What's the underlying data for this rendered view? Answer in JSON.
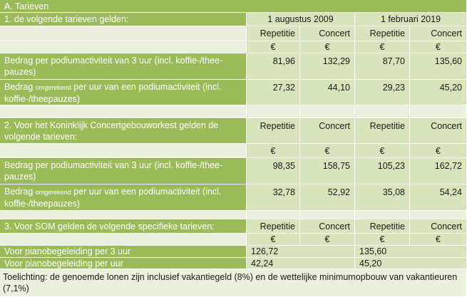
{
  "title": "A. Tarieven",
  "section1": {
    "label": "1.  de volgende tarieven gelden:",
    "date1": "1 augustus 2009",
    "date2": "1 februari 2019",
    "col_rep": "Repetitie",
    "col_con": "Concert",
    "currency": "€",
    "row1": {
      "label": "Bedrag per podiumactiviteit van 3 uur (incl. koffie-/thee- pauzes)",
      "v1": "81,96",
      "v2": "132,29",
      "v3": "87,70",
      "v4": "135,60"
    },
    "row2": {
      "label_a": "Bedrag ",
      "label_small": "omgerekend",
      "label_b": " per uur van een podiumactiviteit (incl. koffie-/theepauzes)",
      "v1": "27,32",
      "v2": "44,10",
      "v3": "29,23",
      "v4": "45,20"
    }
  },
  "section2": {
    "label": "2. Voor het Koninklijk Concertgebouworkest gelden de volgende tarieven:",
    "col_rep": "Repetitie",
    "col_con": "Concert",
    "currency": "€",
    "row1": {
      "label": "Bedrag per podiumactiviteit van 3 uur (incl. koffie-/thee-pauzes)",
      "v1": "98,35",
      "v2": "158,75",
      "v3": "105,23",
      "v4": "162,72"
    },
    "row2": {
      "label_a": "Bedrag ",
      "label_small": "omgerekend",
      "label_b": " per uur van een podiumactiviteit (incl. koffie-/theepauzes)",
      "v1": "32,78",
      "v2": "52,92",
      "v3": "35,08",
      "v4": "54,24"
    }
  },
  "section3": {
    "label": "3. Voor SOM gelden de volgende specifieke tarieven:",
    "col_rep": "Repetitie",
    "col_con": "Concert",
    "currency": "€",
    "row1": {
      "label": "Voor pianobegeleiding per 3 uur",
      "v1": "126,72",
      "v3": "135,60"
    },
    "row2": {
      "label": "Voor pianobegeleiding per uur",
      "v1": "42,24",
      "v3": "45,20"
    }
  },
  "note": "Toelichting: de genoemde lonen zijn inclusief vakantiegeld (8%) en de wettelijke minimumopbouw van vakantieuren (7,1%)"
}
